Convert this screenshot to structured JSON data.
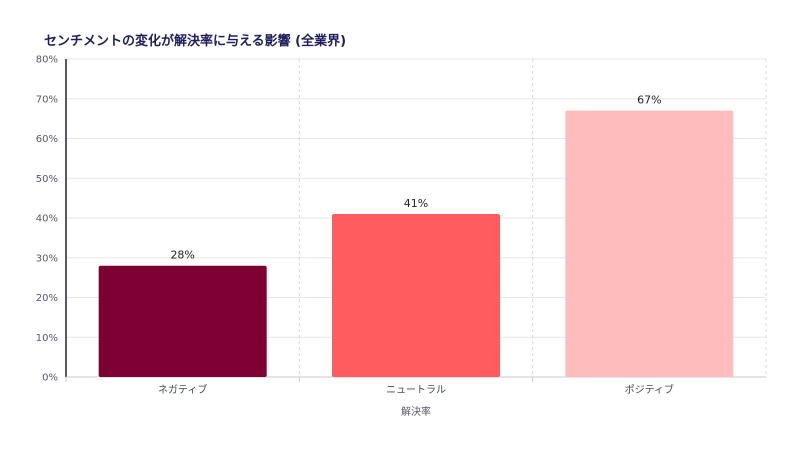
{
  "chart_data": {
    "type": "bar",
    "title": "センチメントの変化が解決率に与える影響 (全業界)",
    "xlabel": "解決率",
    "ylabel": "",
    "categories": [
      "ネガティブ",
      "ニュートラル",
      "ポジティブ"
    ],
    "values": [
      28,
      41,
      67
    ],
    "data_labels": [
      "28%",
      "41%",
      "67%"
    ],
    "bar_colors": [
      "#7d0033",
      "#ff5c5f",
      "#ffbcbc"
    ],
    "ylim": [
      0,
      80
    ],
    "yticks": [
      0,
      10,
      20,
      30,
      40,
      50,
      60,
      70,
      80
    ],
    "ytick_labels": [
      "0%",
      "10%",
      "20%",
      "30%",
      "40%",
      "50%",
      "60%",
      "70%",
      "80%"
    ],
    "grid": true,
    "legend": "none"
  }
}
